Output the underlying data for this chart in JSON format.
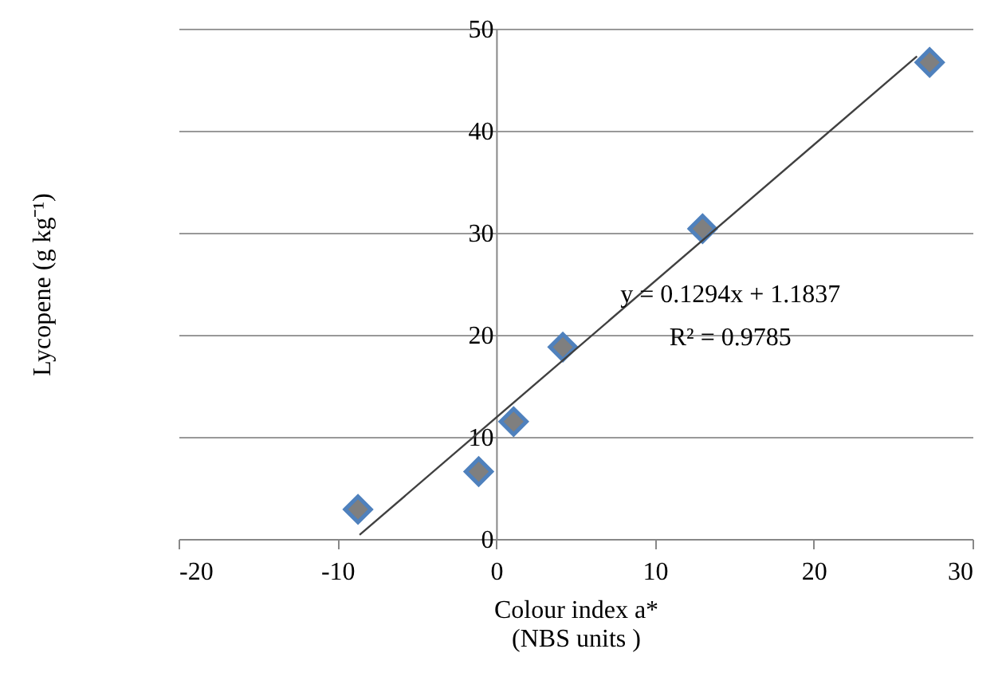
{
  "chart_data": {
    "type": "scatter",
    "xlabel": "Colour index a*\n(NBS units )",
    "ylabel": "Lycopene (g kg⁻¹)",
    "series": [
      {
        "color": "#4f81bd",
        "x": [
          -8.7,
          -1.1,
          1.1,
          4.2,
          13.0,
          27.3
        ],
        "values": [
          2.9,
          6.6,
          11.5,
          18.8,
          30.4,
          46.7
        ],
        "marker": "diamond"
      },
      {
        "type": "line",
        "color": "#404040",
        "x": [
          -8.6,
          26.5
        ],
        "values": [
          0.4,
          47.3
        ],
        "marker": "none",
        "line_style": "solid"
      }
    ],
    "xlim": [
      -20,
      30
    ],
    "xticks": [
      -20,
      -10,
      0,
      10,
      20,
      30
    ],
    "ylim": [
      0,
      50
    ],
    "yticks": [
      0,
      10,
      20,
      30,
      40,
      50
    ],
    "grid": "y",
    "annotations": [
      "y = 0.1294x + 1.1837",
      "R² = 0.9785"
    ]
  }
}
